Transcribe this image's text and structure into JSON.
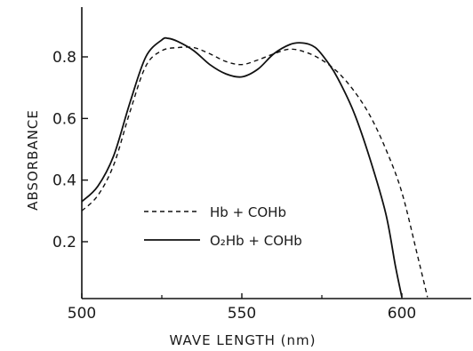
{
  "chart_data": {
    "type": "line",
    "xlabel": "WAVE LENGTH (nm)",
    "ylabel": "ABSORBANCE",
    "xlim": [
      500,
      625
    ],
    "ylim": [
      0.0,
      0.9
    ],
    "xticks": [
      "500",
      "550",
      "600"
    ],
    "xtick_values": [
      500,
      550,
      600
    ],
    "yticks": [
      "0.2",
      "0.4",
      "0.6",
      "0.8"
    ],
    "ytick_values": [
      0.2,
      0.4,
      0.6,
      0.8
    ],
    "grid": false,
    "legend_position": "center-left",
    "series": [
      {
        "name": "Hb + COHb",
        "style": "dashed",
        "x": [
          500,
          505,
          510,
          515,
          520,
          525,
          530,
          535,
          540,
          545,
          550,
          555,
          560,
          565,
          570,
          575,
          580,
          585,
          590,
          595,
          600,
          605,
          608
        ],
        "y": [
          0.3,
          0.35,
          0.45,
          0.62,
          0.77,
          0.82,
          0.83,
          0.83,
          0.81,
          0.785,
          0.775,
          0.79,
          0.81,
          0.825,
          0.815,
          0.79,
          0.75,
          0.69,
          0.61,
          0.5,
          0.36,
          0.15,
          0.02
        ]
      },
      {
        "name": "O₂Hb + COHb",
        "style": "solid",
        "x": [
          500,
          505,
          510,
          515,
          520,
          525,
          527,
          530,
          535,
          540,
          545,
          550,
          555,
          560,
          565,
          569,
          573,
          577,
          580,
          585,
          590,
          595,
          598,
          600
        ],
        "y": [
          0.33,
          0.38,
          0.48,
          0.65,
          0.8,
          0.855,
          0.86,
          0.85,
          0.82,
          0.775,
          0.745,
          0.735,
          0.76,
          0.81,
          0.84,
          0.845,
          0.83,
          0.78,
          0.73,
          0.62,
          0.47,
          0.29,
          0.12,
          0.02
        ]
      }
    ]
  }
}
